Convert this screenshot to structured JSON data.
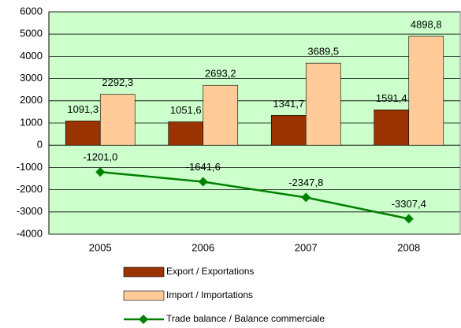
{
  "chart_data": {
    "type": "bar",
    "categories": [
      "2005",
      "2006",
      "2007",
      "2008"
    ],
    "series": [
      {
        "name": "Export / Exportations",
        "color": "#993300",
        "type": "bar",
        "values": [
          1091.3,
          1051.6,
          1341.7,
          1591.4
        ],
        "value_labels": [
          "1091,3",
          "1051,6",
          "1341,7",
          "1591,4"
        ]
      },
      {
        "name": "Import / Importations",
        "color": "#ffcc99",
        "type": "bar",
        "values": [
          2292.3,
          2693.2,
          3689.5,
          4898.8
        ],
        "value_labels": [
          "2292,3",
          "2693,2",
          "3689,5",
          "4898,8"
        ]
      },
      {
        "name": "Trade balance / Balance commerciale",
        "color": "#008000",
        "type": "line",
        "values": [
          -1201.0,
          -1641.6,
          -2347.8,
          -3307.4
        ],
        "value_labels": [
          "-1201,0",
          "-1641,6",
          "-2347,8",
          "-3307,4"
        ]
      }
    ],
    "ylim": [
      -4000,
      6000
    ],
    "yticks": [
      -4000,
      -3000,
      -2000,
      -1000,
      0,
      1000,
      2000,
      3000,
      4000,
      5000,
      6000
    ],
    "grid": true,
    "legend": "bottom"
  }
}
